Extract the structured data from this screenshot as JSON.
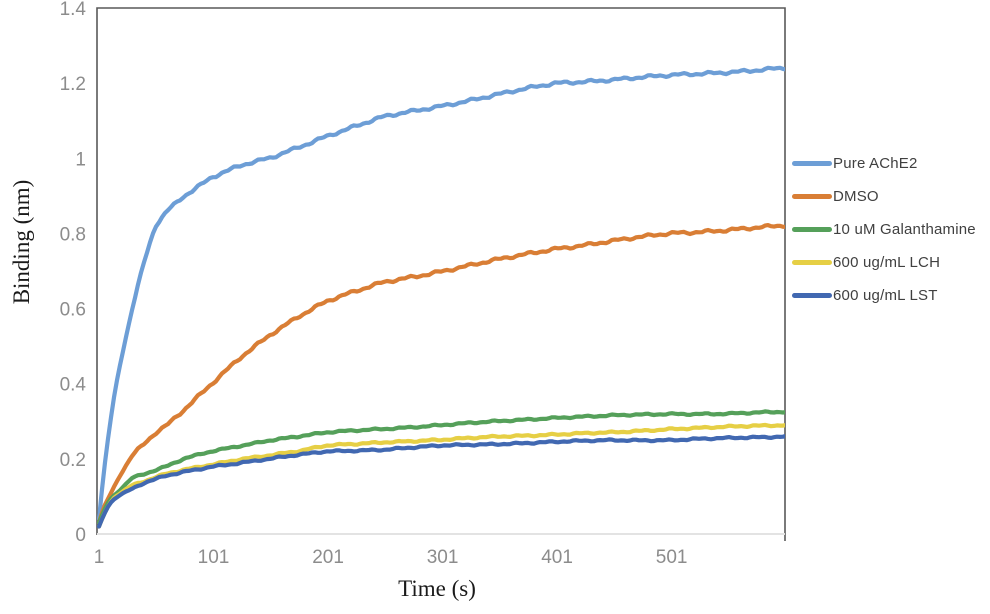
{
  "chart_data": {
    "type": "line",
    "title": "",
    "xlabel": "Time (s)",
    "ylabel": "Binding (nm)",
    "xlim": [
      1,
      600
    ],
    "ylim": [
      0,
      1.4
    ],
    "grid": false,
    "legend_position": "right-outside",
    "x_ticks": [
      {
        "value": 1,
        "label": "1"
      },
      {
        "value": 101,
        "label": "101"
      },
      {
        "value": 201,
        "label": "201"
      },
      {
        "value": 301,
        "label": "301"
      },
      {
        "value": 401,
        "label": "401"
      },
      {
        "value": 501,
        "label": "501"
      }
    ],
    "y_ticks": [
      {
        "value": 0,
        "label": "0"
      },
      {
        "value": 0.2,
        "label": "0.2"
      },
      {
        "value": 0.4,
        "label": "0.4"
      },
      {
        "value": 0.6,
        "label": "0.6"
      },
      {
        "value": 0.8,
        "label": "0.8"
      },
      {
        "value": 1,
        "label": "1"
      },
      {
        "value": 1.2,
        "label": "1.2"
      },
      {
        "value": 1.4,
        "label": "1.4"
      }
    ],
    "axis_color": "#595959",
    "baseline_color": "#e3e3e3",
    "tick_label_color": "#8c8c8c",
    "axis_title_color": "#1a1a1a",
    "legend_text_color": "#404040",
    "x": [
      1,
      5,
      10,
      15,
      20,
      30,
      40,
      50,
      60,
      75,
      100,
      125,
      150,
      175,
      200,
      250,
      300,
      350,
      400,
      450,
      500,
      550,
      600
    ],
    "series": [
      {
        "name": "Pure AChE2",
        "color": "#6d9ed6",
        "values": [
          0.04,
          0.16,
          0.28,
          0.38,
          0.46,
          0.6,
          0.72,
          0.82,
          0.86,
          0.9,
          0.95,
          0.98,
          1.0,
          1.03,
          1.06,
          1.11,
          1.14,
          1.17,
          1.2,
          1.21,
          1.22,
          1.23,
          1.24
        ]
      },
      {
        "name": "DMSO",
        "color": "#d97e35",
        "values": [
          0.03,
          0.07,
          0.1,
          0.13,
          0.16,
          0.21,
          0.24,
          0.27,
          0.29,
          0.33,
          0.4,
          0.47,
          0.53,
          0.58,
          0.62,
          0.67,
          0.7,
          0.73,
          0.76,
          0.78,
          0.8,
          0.81,
          0.82
        ]
      },
      {
        "name": "10 uM Galanthamine",
        "color": "#55a05a",
        "values": [
          0.03,
          0.06,
          0.09,
          0.105,
          0.12,
          0.15,
          0.16,
          0.17,
          0.18,
          0.2,
          0.22,
          0.235,
          0.25,
          0.26,
          0.27,
          0.28,
          0.29,
          0.3,
          0.31,
          0.315,
          0.32,
          0.32,
          0.325
        ]
      },
      {
        "name": "600 ug/mL LCH",
        "color": "#e6cf45",
        "values": [
          0.02,
          0.05,
          0.08,
          0.1,
          0.11,
          0.13,
          0.14,
          0.15,
          0.16,
          0.17,
          0.185,
          0.2,
          0.21,
          0.22,
          0.235,
          0.245,
          0.25,
          0.26,
          0.265,
          0.27,
          0.28,
          0.285,
          0.29
        ]
      },
      {
        "name": "600 ug/mL LST",
        "color": "#4168b1",
        "values": [
          0.02,
          0.05,
          0.08,
          0.095,
          0.105,
          0.12,
          0.135,
          0.145,
          0.155,
          0.165,
          0.18,
          0.19,
          0.2,
          0.21,
          0.22,
          0.225,
          0.235,
          0.24,
          0.245,
          0.25,
          0.25,
          0.255,
          0.26
        ]
      }
    ]
  }
}
